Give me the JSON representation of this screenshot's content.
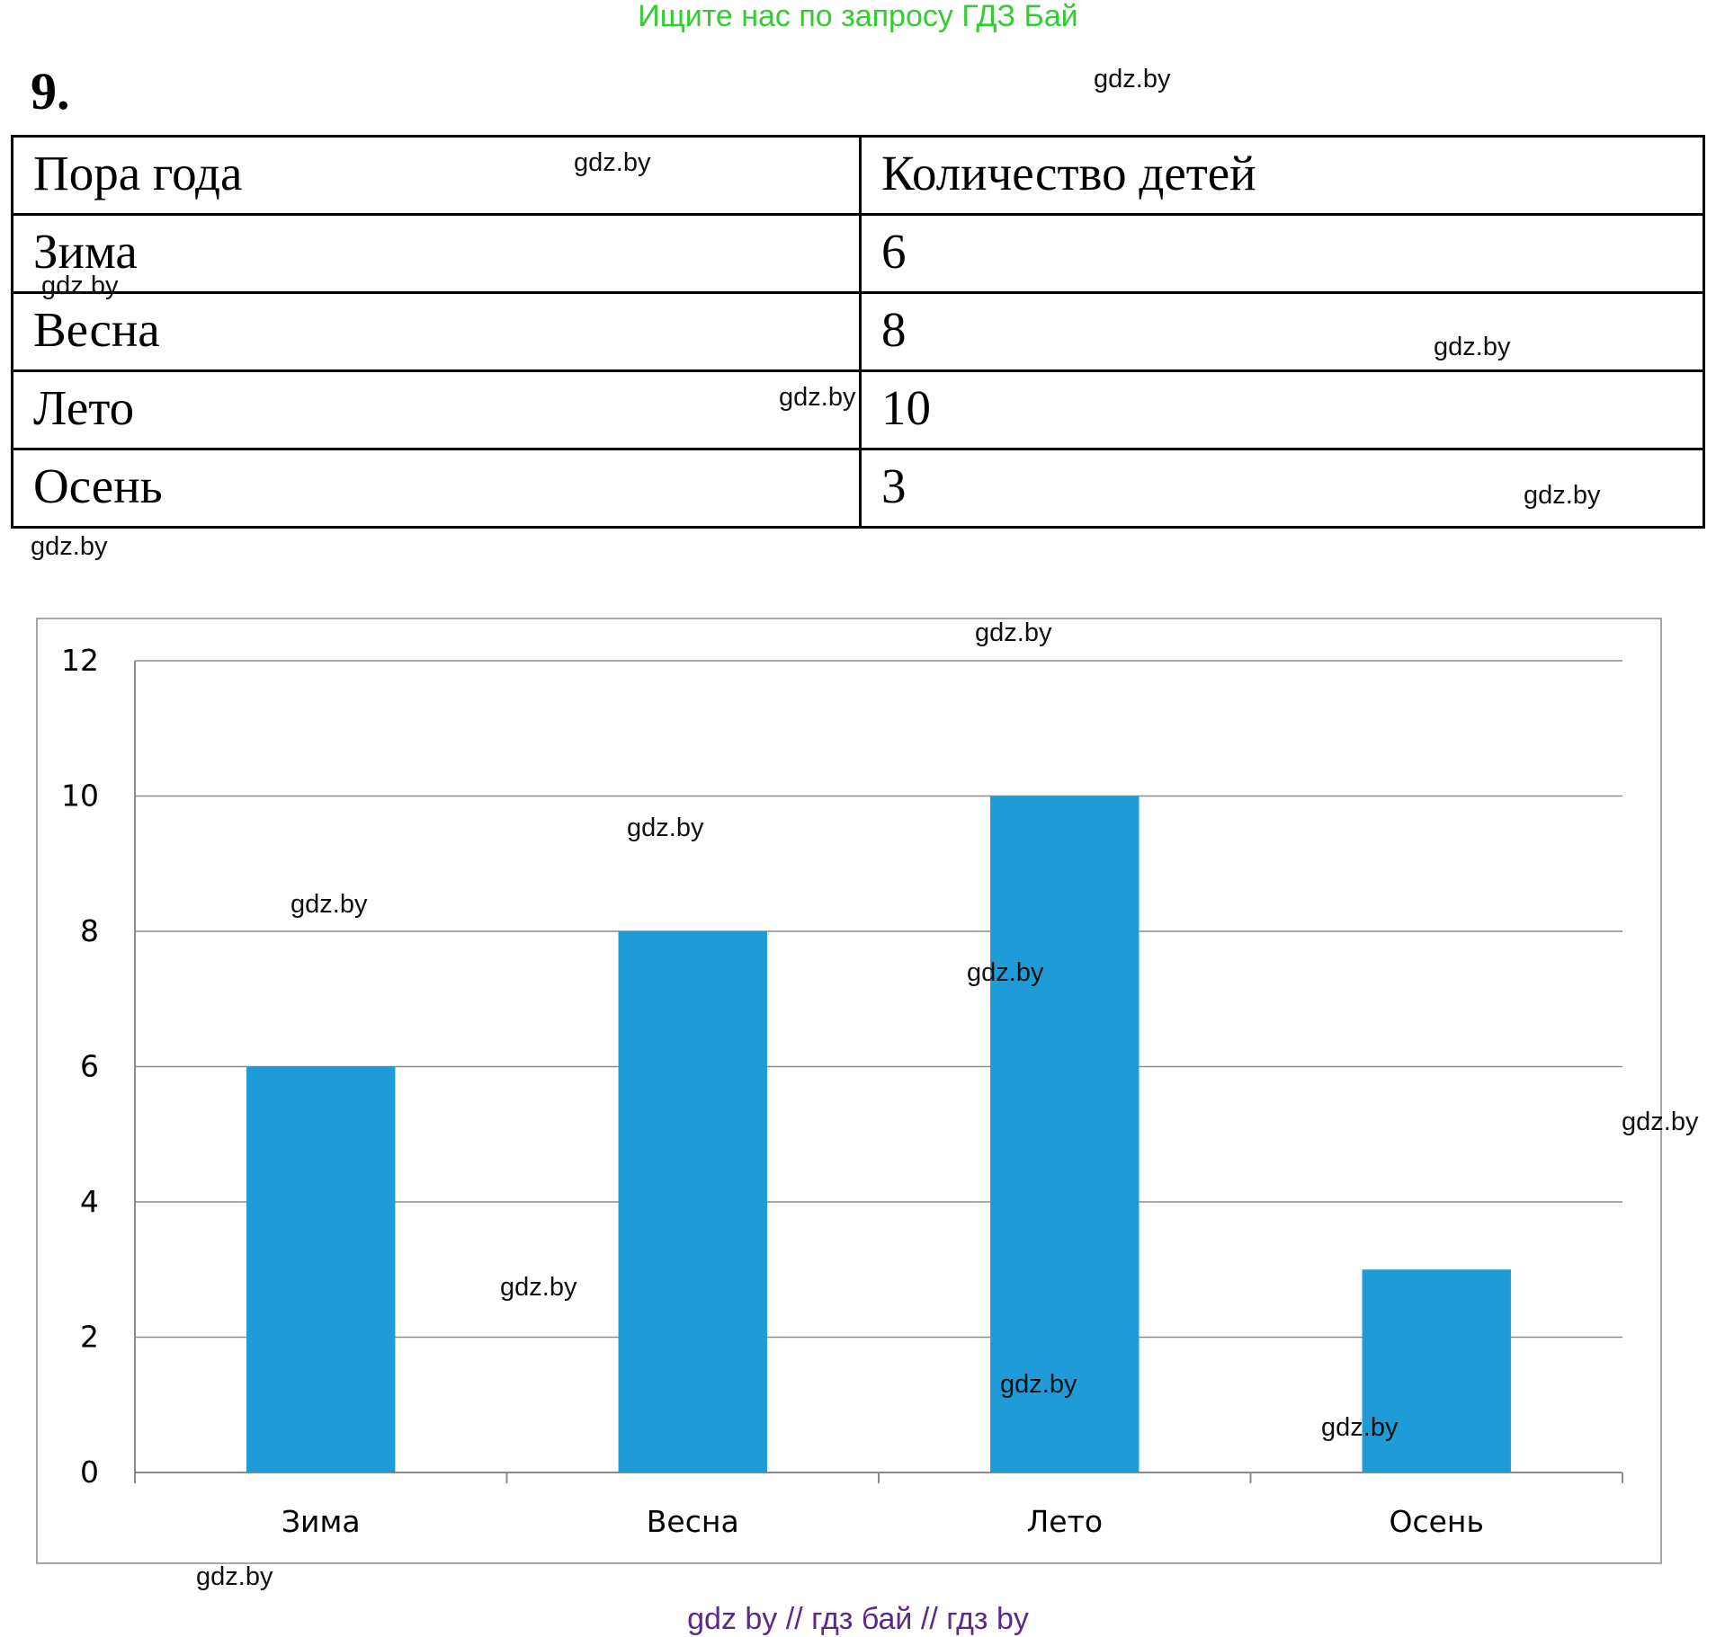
{
  "banner": "Ищите нас по запросу ГДЗ Бай",
  "task_number": "9.",
  "watermark": "gdz.by",
  "table": {
    "headers": [
      "Пора года",
      "Количество детей"
    ],
    "rows": [
      [
        "Зима",
        "6"
      ],
      [
        "Весна",
        "8"
      ],
      [
        "Лето",
        "10"
      ],
      [
        "Осень",
        "3"
      ]
    ]
  },
  "chart_data": {
    "type": "bar",
    "categories": [
      "Зима",
      "Весна",
      "Лето",
      "Осень"
    ],
    "values": [
      6,
      8,
      10,
      3
    ],
    "yticks": [
      "0",
      "2",
      "4",
      "6",
      "8",
      "10",
      "12"
    ],
    "ylim": [
      0,
      12
    ],
    "grid": true,
    "bar_color": "#1f9cd8",
    "grid_color": "#8c8c8c",
    "title": "",
    "xlabel": "",
    "ylabel": ""
  },
  "footer": "gdz by  //  гдз бай  //  гдз by"
}
